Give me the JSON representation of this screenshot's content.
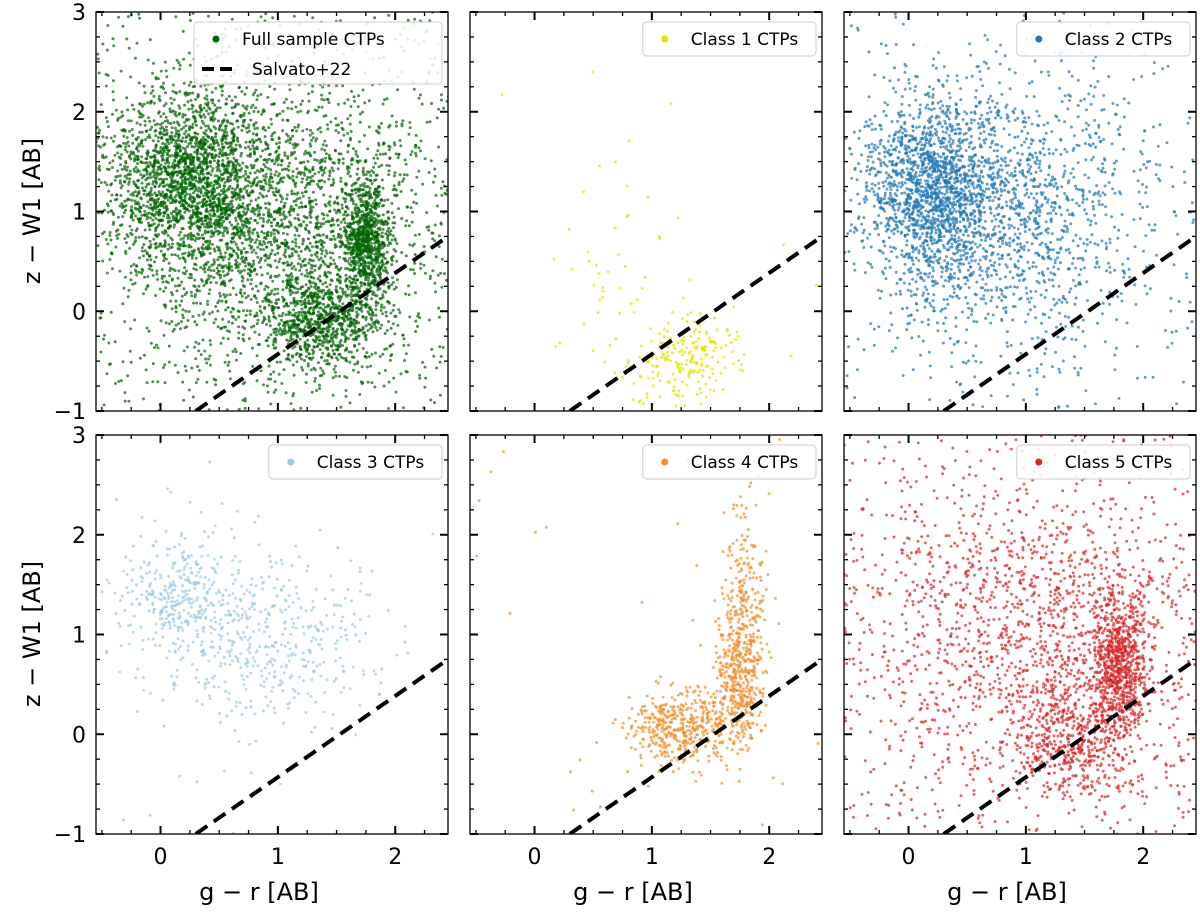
{
  "figure": {
    "xlabel": "g − r [AB]",
    "ylabel": "z − W1 [AB]",
    "xlim": [
      -0.55,
      2.45
    ],
    "ylim": [
      -1,
      3
    ],
    "xticks": [
      0,
      1,
      2
    ],
    "yticks": [
      -1,
      0,
      1,
      2,
      3
    ],
    "reference_line": {
      "name": "Salvato+22",
      "color": "#000000",
      "x": [
        0.3,
        2.45
      ],
      "y": [
        -1.0,
        0.75
      ]
    }
  },
  "chart_data": [
    {
      "type": "scatter",
      "title": "",
      "legend": "Full sample CTPs",
      "legend_position": "top-right",
      "color": "#006400",
      "xlabel": "",
      "ylabel": "z − W1 [AB]",
      "xlim": [
        -0.55,
        2.45
      ],
      "ylim": [
        -1,
        3
      ],
      "point_count": 6000,
      "clusters": [
        {
          "center": [
            0.25,
            1.3
          ],
          "spread": [
            0.35,
            0.45
          ],
          "weight": 0.35
        },
        {
          "center": [
            1.0,
            0.9
          ],
          "spread": [
            0.6,
            0.7
          ],
          "weight": 0.35
        },
        {
          "center": [
            1.75,
            0.7
          ],
          "spread": [
            0.1,
            0.3
          ],
          "weight": 0.15
        },
        {
          "center": [
            1.4,
            -0.1
          ],
          "spread": [
            0.25,
            0.25
          ],
          "weight": 0.15
        }
      ],
      "uniform_fraction": 0.12
    },
    {
      "type": "scatter",
      "title": "",
      "legend": "Class 1 CTPs",
      "legend_position": "top-right",
      "color": "#e3e300",
      "xlabel": "",
      "ylabel": "",
      "xlim": [
        -0.55,
        2.45
      ],
      "ylim": [
        -1,
        3
      ],
      "point_count": 260,
      "clusters": [
        {
          "center": [
            1.35,
            -0.45
          ],
          "spread": [
            0.18,
            0.22
          ],
          "weight": 0.6
        },
        {
          "center": [
            1.05,
            -0.5
          ],
          "spread": [
            0.35,
            0.3
          ],
          "weight": 0.25
        },
        {
          "center": [
            0.7,
            0.6
          ],
          "spread": [
            0.3,
            0.5
          ],
          "weight": 0.15
        }
      ],
      "uniform_fraction": 0.03
    },
    {
      "type": "scatter",
      "title": "",
      "legend": "Class 2 CTPs",
      "legend_position": "top-right",
      "color": "#1f77b4",
      "xlabel": "",
      "ylabel": "",
      "xlim": [
        -0.55,
        2.45
      ],
      "ylim": [
        -1,
        3
      ],
      "point_count": 3000,
      "clusters": [
        {
          "center": [
            0.2,
            1.2
          ],
          "spread": [
            0.3,
            0.5
          ],
          "weight": 0.55
        },
        {
          "center": [
            0.9,
            1.0
          ],
          "spread": [
            0.6,
            0.7
          ],
          "weight": 0.45
        }
      ],
      "uniform_fraction": 0.06
    },
    {
      "type": "scatter",
      "title": "",
      "legend": "Class 3 CTPs",
      "legend_position": "top-right",
      "color": "#9ecae1",
      "xlabel": "",
      "ylabel": "z − W1 [AB]",
      "xlim": [
        -0.55,
        2.45
      ],
      "ylim": [
        -1,
        3
      ],
      "point_count": 800,
      "clusters": [
        {
          "center": [
            0.2,
            1.35
          ],
          "spread": [
            0.3,
            0.35
          ],
          "weight": 0.5
        },
        {
          "center": [
            1.0,
            0.95
          ],
          "spread": [
            0.45,
            0.45
          ],
          "weight": 0.5
        }
      ],
      "uniform_fraction": 0.03
    },
    {
      "type": "scatter",
      "title": "",
      "legend": "Class 4 CTPs",
      "legend_position": "top-right",
      "color": "#f28e2b",
      "xlabel": "g − r [AB]",
      "ylabel": "",
      "xlim": [
        -0.55,
        2.45
      ],
      "ylim": [
        -1,
        3
      ],
      "point_count": 1100,
      "clusters": [
        {
          "center": [
            1.75,
            0.65
          ],
          "spread": [
            0.1,
            0.35
          ],
          "weight": 0.4
        },
        {
          "center": [
            1.3,
            0.05
          ],
          "spread": [
            0.25,
            0.2
          ],
          "weight": 0.45
        },
        {
          "center": [
            1.8,
            1.5
          ],
          "spread": [
            0.1,
            0.5
          ],
          "weight": 0.15
        }
      ],
      "uniform_fraction": 0.02
    },
    {
      "type": "scatter",
      "title": "",
      "legend": "Class 5 CTPs",
      "legend_position": "top-right",
      "color": "#d62728",
      "xlabel": "",
      "ylabel": "",
      "xlim": [
        -0.55,
        2.45
      ],
      "ylim": [
        -1,
        3
      ],
      "point_count": 3000,
      "clusters": [
        {
          "center": [
            1.8,
            0.7
          ],
          "spread": [
            0.12,
            0.35
          ],
          "weight": 0.3
        },
        {
          "center": [
            1.4,
            -0.05
          ],
          "spread": [
            0.25,
            0.3
          ],
          "weight": 0.2
        },
        {
          "center": [
            1.0,
            1.1
          ],
          "spread": [
            0.75,
            0.8
          ],
          "weight": 0.5
        }
      ],
      "uniform_fraction": 0.15
    }
  ]
}
